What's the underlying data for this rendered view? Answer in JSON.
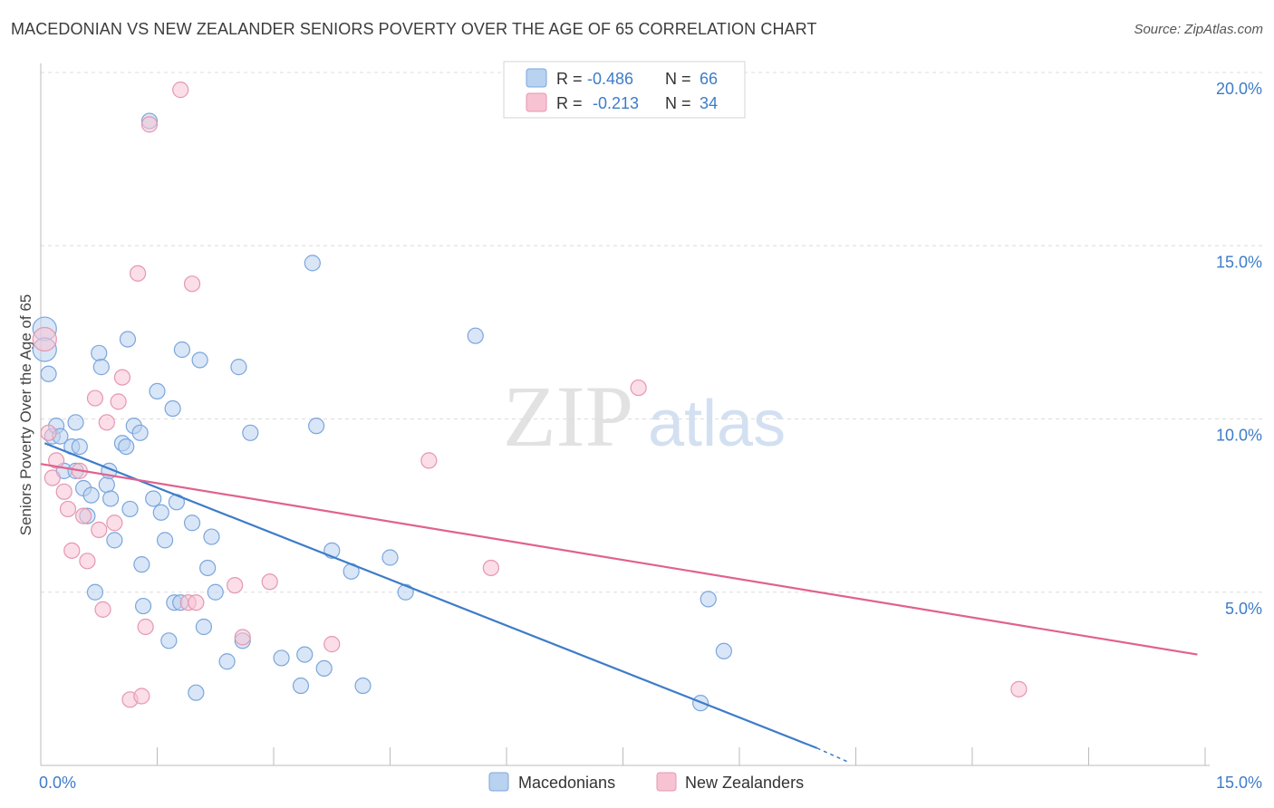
{
  "title": "MACEDONIAN VS NEW ZEALANDER SENIORS POVERTY OVER THE AGE OF 65 CORRELATION CHART",
  "source": "Source: ZipAtlas.com",
  "watermark": {
    "zip": "ZIP",
    "atlas": "atlas"
  },
  "colors": {
    "blue": "#3d7cc9",
    "blue_fill": "#b9d2f0",
    "pink": "#e0628e",
    "pink_fill": "#f7c3d3",
    "grid": "#dcdcdc"
  },
  "legend": {
    "rows": [
      {
        "r_label": "R =",
        "r_value": "-0.486",
        "n_label": "N =",
        "n_value": "66",
        "color": "blue"
      },
      {
        "r_label": "R =",
        "r_value": "-0.213",
        "n_label": "N =",
        "n_value": "34",
        "color": "pink"
      }
    ]
  },
  "bottom_legend": {
    "series1": "Macedonians",
    "series2": "New Zealanders"
  },
  "chart_data": {
    "type": "scatter",
    "title": "MACEDONIAN VS NEW ZEALANDER SENIORS POVERTY OVER THE AGE OF 65 CORRELATION CHART",
    "xlabel": "",
    "ylabel": "Seniors Poverty Over the Age of 65",
    "xlim": [
      0,
      15
    ],
    "ylim": [
      0,
      20
    ],
    "x_tick_labels": {
      "left": "0.0%",
      "right": "15.0%"
    },
    "y_ticks": [
      5,
      10,
      15,
      20
    ],
    "y_tick_labels": [
      "5.0%",
      "10.0%",
      "15.0%",
      "20.0%"
    ],
    "series": [
      {
        "name": "Macedonians",
        "color": "blue",
        "r": -0.486,
        "n": 66,
        "trend": {
          "x": [
            0.05,
            10.0
          ],
          "y": [
            9.3,
            0.5
          ],
          "dash_to": [
            10.4,
            0.1
          ]
        },
        "points": [
          [
            0.05,
            12.6
          ],
          [
            0.05,
            12.0
          ],
          [
            0.1,
            11.3
          ],
          [
            0.15,
            9.5
          ],
          [
            0.2,
            9.8
          ],
          [
            0.25,
            9.5
          ],
          [
            0.3,
            8.5
          ],
          [
            0.4,
            9.2
          ],
          [
            0.45,
            9.9
          ],
          [
            0.45,
            8.5
          ],
          [
            0.5,
            9.2
          ],
          [
            0.55,
            8.0
          ],
          [
            0.6,
            7.2
          ],
          [
            0.65,
            7.8
          ],
          [
            0.7,
            5.0
          ],
          [
            0.75,
            11.9
          ],
          [
            0.78,
            11.5
          ],
          [
            0.85,
            8.1
          ],
          [
            0.88,
            8.5
          ],
          [
            0.9,
            7.7
          ],
          [
            0.95,
            6.5
          ],
          [
            1.05,
            9.3
          ],
          [
            1.1,
            9.2
          ],
          [
            1.12,
            12.3
          ],
          [
            1.15,
            7.4
          ],
          [
            1.2,
            9.8
          ],
          [
            1.28,
            9.6
          ],
          [
            1.3,
            5.8
          ],
          [
            1.32,
            4.6
          ],
          [
            1.4,
            18.6
          ],
          [
            1.45,
            7.7
          ],
          [
            1.5,
            10.8
          ],
          [
            1.55,
            7.3
          ],
          [
            1.6,
            6.5
          ],
          [
            1.65,
            3.6
          ],
          [
            1.7,
            10.3
          ],
          [
            1.72,
            4.7
          ],
          [
            1.75,
            7.6
          ],
          [
            1.8,
            4.7
          ],
          [
            1.82,
            12.0
          ],
          [
            1.95,
            7.0
          ],
          [
            2.0,
            2.1
          ],
          [
            2.05,
            11.7
          ],
          [
            2.1,
            4.0
          ],
          [
            2.15,
            5.7
          ],
          [
            2.2,
            6.6
          ],
          [
            2.25,
            5.0
          ],
          [
            2.55,
            11.5
          ],
          [
            2.6,
            3.6
          ],
          [
            2.7,
            9.6
          ],
          [
            3.1,
            3.1
          ],
          [
            3.4,
            3.2
          ],
          [
            3.5,
            14.5
          ],
          [
            3.55,
            9.8
          ],
          [
            3.65,
            2.8
          ],
          [
            3.35,
            2.3
          ],
          [
            3.75,
            6.2
          ],
          [
            4.0,
            5.6
          ],
          [
            4.15,
            2.3
          ],
          [
            4.5,
            6.0
          ],
          [
            4.7,
            5.0
          ],
          [
            5.6,
            12.4
          ],
          [
            8.5,
            1.8
          ],
          [
            8.6,
            4.8
          ],
          [
            8.8,
            3.3
          ],
          [
            2.4,
            3.0
          ]
        ]
      },
      {
        "name": "New Zealanders",
        "color": "pink",
        "r": -0.213,
        "n": 34,
        "trend": {
          "x": [
            0.0,
            14.9
          ],
          "y": [
            8.7,
            3.2
          ]
        },
        "points": [
          [
            0.05,
            12.3
          ],
          [
            0.1,
            9.6
          ],
          [
            0.15,
            8.3
          ],
          [
            0.2,
            8.8
          ],
          [
            0.3,
            7.9
          ],
          [
            0.35,
            7.4
          ],
          [
            0.4,
            6.2
          ],
          [
            0.5,
            8.5
          ],
          [
            0.55,
            7.2
          ],
          [
            0.6,
            5.9
          ],
          [
            0.7,
            10.6
          ],
          [
            0.75,
            6.8
          ],
          [
            0.8,
            4.5
          ],
          [
            0.85,
            9.9
          ],
          [
            0.95,
            7.0
          ],
          [
            1.0,
            10.5
          ],
          [
            1.05,
            11.2
          ],
          [
            1.15,
            1.9
          ],
          [
            1.25,
            14.2
          ],
          [
            1.3,
            2.0
          ],
          [
            1.35,
            4.0
          ],
          [
            1.4,
            18.5
          ],
          [
            1.8,
            19.5
          ],
          [
            1.9,
            4.7
          ],
          [
            1.95,
            13.9
          ],
          [
            2.0,
            4.7
          ],
          [
            2.5,
            5.2
          ],
          [
            2.6,
            3.7
          ],
          [
            2.95,
            5.3
          ],
          [
            3.75,
            3.5
          ],
          [
            5.0,
            8.8
          ],
          [
            5.8,
            5.7
          ],
          [
            7.7,
            10.9
          ],
          [
            12.6,
            2.2
          ]
        ]
      }
    ]
  }
}
